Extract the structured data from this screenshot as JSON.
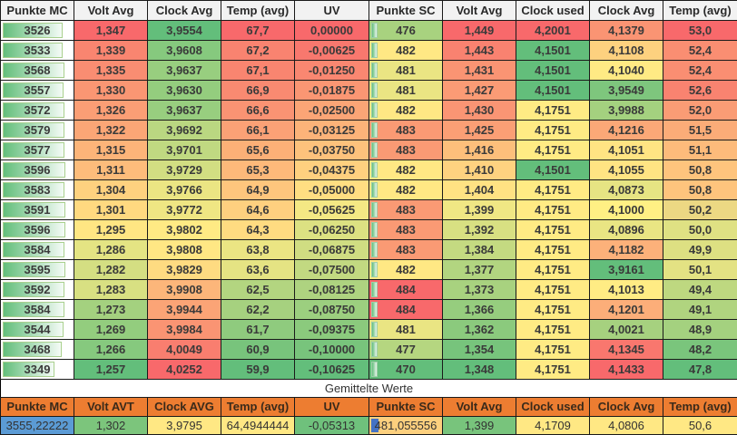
{
  "headers": [
    "Punkte MC",
    "Volt Avg",
    "Clock Avg",
    "Temp (avg)",
    "UV",
    "Punkte SC",
    "Volt Avg",
    "Clock used",
    "Clock Avg",
    "Temp (avg)"
  ],
  "rows": [
    {
      "cells": [
        "3526",
        "1,347",
        "3,9554",
        "67,7",
        "0,00000",
        "476",
        "1,449",
        "4,2001",
        "4,1379",
        "53,0"
      ],
      "colors": [
        "",
        "#f8696b",
        "#63be7b",
        "#f8696b",
        "#f8696b",
        "#a8d27f",
        "#f8696b",
        "#f8696b",
        "#fa9473",
        "#f8696b"
      ],
      "bar": 88
    },
    {
      "cells": [
        "3533",
        "1,339",
        "3,9608",
        "67,2",
        "-0,00625",
        "482",
        "1,443",
        "4,1501",
        "4,1108",
        "52,4"
      ],
      "colors": [
        "",
        "#f98570",
        "#86c97e",
        "#f98370",
        "#f8786e",
        "#ffe884",
        "#f98270",
        "#63be7b",
        "#fdd17f",
        "#fa8e72"
      ],
      "bar": 88
    },
    {
      "cells": [
        "3568",
        "1,335",
        "3,9637",
        "67,1",
        "-0,01250",
        "481",
        "1,431",
        "4,1501",
        "4,1040",
        "52,4"
      ],
      "colors": [
        "",
        "#f98d72",
        "#98ce7f",
        "#f98570",
        "#f98771",
        "#eae583",
        "#fa9473",
        "#63be7b",
        "#ffea84",
        "#fa8e72"
      ],
      "bar": 90
    },
    {
      "cells": [
        "3557",
        "1,330",
        "3,9630",
        "66,9",
        "-0,01875",
        "481",
        "1,427",
        "4,1501",
        "3,9549",
        "52,6"
      ],
      "colors": [
        "",
        "#fa9673",
        "#94cd7e",
        "#f98a71",
        "#fa9673",
        "#eae583",
        "#fb9b75",
        "#63be7b",
        "#7ec67d",
        "#f98370"
      ],
      "bar": 89
    },
    {
      "cells": [
        "3572",
        "1,326",
        "3,9637",
        "66,6",
        "-0,02500",
        "482",
        "1,430",
        "4,1751",
        "3,9988",
        "52,0"
      ],
      "colors": [
        "",
        "#fb9e75",
        "#98ce7f",
        "#fa9373",
        "#fba576",
        "#ffe884",
        "#fa9574",
        "#ffeb84",
        "#a4d17f",
        "#fa9c75"
      ],
      "bar": 90
    },
    {
      "cells": [
        "3579",
        "1,322",
        "3,9692",
        "66,1",
        "-0,03125",
        "483",
        "1,425",
        "4,1751",
        "4,1216",
        "51,5"
      ],
      "colors": [
        "",
        "#fba676",
        "#bad781",
        "#fba176",
        "#fcb379",
        "#fa9a74",
        "#fb9f75",
        "#ffeb84",
        "#fba877",
        "#fbac78"
      ],
      "bar": 90
    },
    {
      "cells": [
        "3577",
        "1,315",
        "3,9701",
        "65,6",
        "-0,03750",
        "483",
        "1,416",
        "4,1751",
        "4,1051",
        "51,1"
      ],
      "colors": [
        "",
        "#fcb479",
        "#c0d981",
        "#fcb077",
        "#fdc27c",
        "#fa9a74",
        "#fdbf7b",
        "#ffeb84",
        "#ffe483",
        "#fdbb7b"
      ],
      "bar": 90
    },
    {
      "cells": [
        "3596",
        "1,311",
        "3,9729",
        "65,3",
        "-0,04375",
        "482",
        "1,410",
        "4,1501",
        "4,1055",
        "50,8"
      ],
      "colors": [
        "",
        "#fdbc7b",
        "#d2de82",
        "#fdb97a",
        "#fed07f",
        "#ffe884",
        "#fed280",
        "#63be7b",
        "#ffe483",
        "#fec47d"
      ],
      "bar": 91
    },
    {
      "cells": [
        "3583",
        "1,304",
        "3,9766",
        "64,9",
        "-0,05000",
        "482",
        "1,404",
        "4,1751",
        "4,0873",
        "50,8"
      ],
      "colors": [
        "",
        "#fed17f",
        "#ebe583",
        "#fec67d",
        "#ffde82",
        "#ffe884",
        "#ffe283",
        "#ffeb84",
        "#e6e483",
        "#fec47d"
      ],
      "bar": 90
    },
    {
      "cells": [
        "3591",
        "1,301",
        "3,9772",
        "64,6",
        "-0,05625",
        "483",
        "1,399",
        "4,1751",
        "4,1000",
        "50,2"
      ],
      "colors": [
        "",
        "#ffd980",
        "#efe683",
        "#fed07f",
        "#f4e884",
        "#fa9a74",
        "#f0e784",
        "#ffeb84",
        "#fff084",
        "#ecd883"
      ],
      "bar": 91
    },
    {
      "cells": [
        "3596",
        "1,295",
        "3,9802",
        "64,3",
        "-0,06250",
        "483",
        "1,392",
        "4,1751",
        "4,0896",
        "50,0"
      ],
      "colors": [
        "",
        "#ffe683",
        "#ffea84",
        "#ffdb81",
        "#dce182",
        "#fa9a74",
        "#d8e082",
        "#ffeb84",
        "#e9e583",
        "#dfe183"
      ],
      "bar": 91
    },
    {
      "cells": [
        "3584",
        "1,286",
        "3,9808",
        "63,8",
        "-0,06875",
        "483",
        "1,384",
        "4,1751",
        "4,1182",
        "49,9"
      ],
      "colors": [
        "",
        "#e4e483",
        "#ffe784",
        "#ebe583",
        "#d0dd82",
        "#fa9a74",
        "#c4da81",
        "#ffeb84",
        "#fcb17a",
        "#dde082"
      ],
      "bar": 90
    },
    {
      "cells": [
        "3595",
        "1,282",
        "3,9829",
        "63,6",
        "-0,07500",
        "482",
        "1,377",
        "4,1751",
        "3,9161",
        "50,1"
      ],
      "colors": [
        "",
        "#d4de82",
        "#fedb81",
        "#e5e383",
        "#c2d981",
        "#ffe884",
        "#b2d580",
        "#ffeb84",
        "#63be7b",
        "#e3e283"
      ],
      "bar": 91
    },
    {
      "cells": [
        "3592",
        "1,283",
        "3,9908",
        "62,5",
        "-0,08125",
        "484",
        "1,373",
        "4,1751",
        "4,1013",
        "49,4"
      ],
      "colors": [
        "",
        "#d8e082",
        "#fcb67a",
        "#b3d580",
        "#aed380",
        "#f8696b",
        "#a8d27f",
        "#ffeb84",
        "#ffec84",
        "#bed880"
      ],
      "bar": 90
    },
    {
      "cells": [
        "3584",
        "1,273",
        "3,9944",
        "62,2",
        "-0,08750",
        "484",
        "1,366",
        "4,1751",
        "4,1201",
        "49,1"
      ],
      "colors": [
        "",
        "#a4d17f",
        "#fba476",
        "#a6d17f",
        "#9ccf7f",
        "#f8696b",
        "#96cd7e",
        "#ffeb84",
        "#fcae79",
        "#b0d47f"
      ],
      "bar": 90
    },
    {
      "cells": [
        "3544",
        "1,269",
        "3,9984",
        "61,7",
        "-0,09375",
        "481",
        "1,362",
        "4,1751",
        "4,0021",
        "48,9"
      ],
      "colors": [
        "",
        "#93cd7e",
        "#fa9473",
        "#8fcb7e",
        "#8bca7d",
        "#eae583",
        "#8bca7d",
        "#ffeb84",
        "#a6d17f",
        "#a4d17f"
      ],
      "bar": 89
    },
    {
      "cells": [
        "3468",
        "1,266",
        "4,0049",
        "60,9",
        "-0,10000",
        "477",
        "1,354",
        "4,1751",
        "4,1345",
        "48,2"
      ],
      "colors": [
        "",
        "#86c97e",
        "#f97e6f",
        "#78c47c",
        "#78c47c",
        "#b5d680",
        "#77c47c",
        "#ffeb84",
        "#f9776e",
        "#7ac57c"
      ],
      "bar": 86
    },
    {
      "cells": [
        "3349",
        "1,257",
        "4,0252",
        "59,9",
        "-0,10625",
        "470",
        "1,348",
        "4,1751",
        "4,1433",
        "47,8"
      ],
      "colors": [
        "",
        "#63be7b",
        "#f8696b",
        "#63be7b",
        "#63be7b",
        "#63be7b",
        "#63be7b",
        "#ffeb84",
        "#f8696b",
        "#63be7b"
      ],
      "bar": 76
    }
  ],
  "section_title": "Gemittelte Werte",
  "avg_headers": [
    "Punkte MC",
    "Volt AVT",
    "Clock AVG",
    "Temp (avg)",
    "UV",
    "Punkte SC",
    "Volt Avg",
    "Clock used",
    "Clock Avg",
    "Temp (avg)"
  ],
  "avg_values": [
    "3555,22222",
    "1,302",
    "3,9795",
    "64,4944444",
    "-0,05313",
    "481,055556",
    "1,399",
    "4,1709",
    "4,0806",
    "50,6"
  ],
  "avg_colors": [
    "#5b9bd5",
    "#7cc57c",
    "#ffe884",
    "#ffe884",
    "#6fc17c",
    "#fdd07e",
    "#78c47c",
    "#ffe884",
    "#ffe884",
    "#ffe884"
  ],
  "colors": {
    "header_bg": "#f2f2f2",
    "avg_header_bg": "#ed7d31",
    "scale_red": "#f8696b",
    "scale_yellow": "#ffeb84",
    "scale_green": "#63be7b",
    "databar_blue": "#4472c4"
  }
}
